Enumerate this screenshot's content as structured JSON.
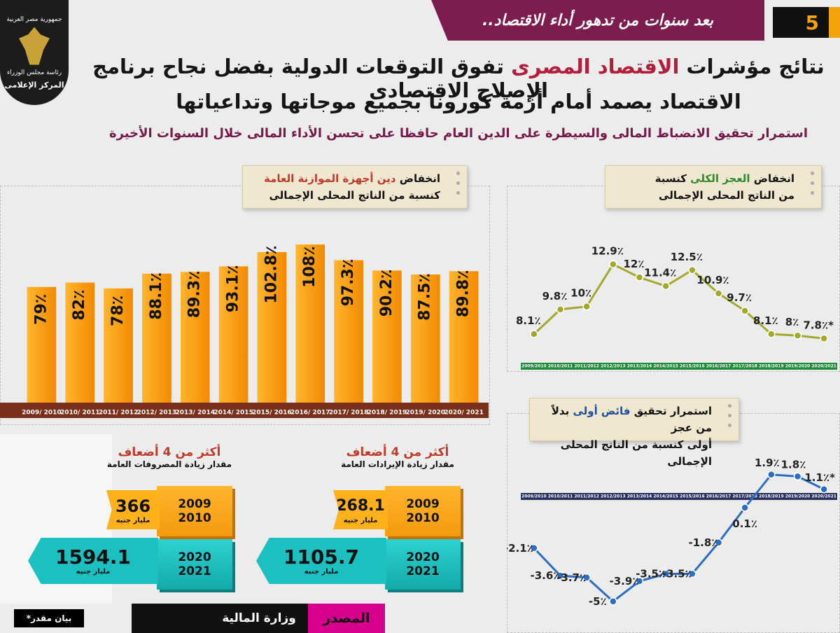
{
  "banner": {
    "title": "بعد سنوات من تدهور أداء الاقتصاد..",
    "page_number": "5"
  },
  "logo": {
    "line1": "جمهورية مصر العربية",
    "line2": "رئاسة مجلس الوزراء",
    "line3": "المركز الإعلامى"
  },
  "headline": {
    "line1_before": "نتائج مؤشرات ",
    "line1_highlight": "الاقتصاد المصرى",
    "line1_after": " تفوق التوقعات الدولية بفضل نجاح برنامج الإصلاح الاقتصادى",
    "line2": "الاقتصاد يصمد أمام أزمة كورونا بجميع موجاتها وتداعياتها",
    "subline": "استمرار تحقيق الانضباط المالى والسيطرة على الدين العام حافظا على تحسن الأداء المالى خلال السنوات الأخيرة"
  },
  "notes": {
    "debt": {
      "prefix": "انخفاض ",
      "highlight": "دين أجهزة الموازنة العامة",
      "line2": "كنسبة من الناتج المحلى الإجمالى"
    },
    "deficit": {
      "prefix": "انخفاض ",
      "highlight": "العجز الكلى",
      "suffix": " كنسبة",
      "line2": "من الناتج المحلى الإجمالى"
    },
    "primary": {
      "prefix": "استمرار تحقيق ",
      "highlight": "فائض أولى",
      "suffix": " بدلاً من عجز",
      "line2": "أولى كنسبة من الناتج المحلى الإجمالى"
    }
  },
  "spending": {
    "expenditure": {
      "ratio": "أكثر من 4 أضعاف",
      "label": "مقدار زيادة المصروفات العامة",
      "old_value": "366",
      "old_year1": "2009",
      "old_year2": "2010",
      "new_value": "1594.1",
      "new_year1": "2020",
      "new_year2": "2021",
      "unit": "مليار جنيه"
    },
    "revenue": {
      "ratio": "أكثر من 4 أضعاف",
      "label": "مقدار زيادة الإيرادات العامة",
      "old_value": "268.1",
      "old_year1": "2009",
      "old_year2": "2010",
      "new_value": "1105.7",
      "new_year1": "2020",
      "new_year2": "2021",
      "unit": "مليار جنيه"
    }
  },
  "footer": {
    "source_label": "المصدر",
    "source_value": "وزارة المالية",
    "estimate_note": "بيان مقدر*"
  },
  "colors": {
    "maroon": "#7d1d4f",
    "orange": "#f49a0d",
    "olive": "#a3a82b",
    "blue": "#2b6cc4",
    "teal": "#1dc0c0"
  },
  "chart_data": [
    {
      "type": "bar",
      "title": "انخفاض دين أجهزة الموازنة العامة كنسبة من الناتج المحلى الإجمالى",
      "categories": [
        "2009/ 2010",
        "2010/ 2011",
        "2011/ 2012",
        "2012/ 2013",
        "2013/ 2014",
        "2014/ 2015",
        "2015/ 2016",
        "2016/ 2017",
        "2017/ 2018",
        "2018/ 2019",
        "2019/ 2020",
        "2020/ 2021"
      ],
      "values": [
        79,
        82,
        78,
        88.1,
        89.3,
        93.1,
        102.8,
        108,
        97.3,
        90.2,
        87.5,
        89.8
      ],
      "labels": [
        "79٪",
        "82٪",
        "78٪",
        "88.1٪",
        "89.3٪",
        "93.1٪",
        "102.8٪",
        "108٪",
        "97.3٪",
        "90.2٪",
        "87.5٪",
        "89.8٪"
      ],
      "ylim": [
        0,
        110
      ]
    },
    {
      "type": "line",
      "title": "انخفاض العجز الكلى كنسبة من الناتج المحلى الإجمالى",
      "categories": [
        "2009/2010",
        "2010/2011",
        "2011/2012",
        "2012/2013",
        "2013/2014",
        "2014/2015",
        "2015/2016",
        "2016/2017",
        "2017/2018",
        "2018/2019",
        "2019/2020",
        "2020/2021"
      ],
      "values": [
        8.1,
        9.8,
        10,
        12.9,
        12,
        11.4,
        12.5,
        10.9,
        9.7,
        8.1,
        8,
        7.8
      ],
      "labels": [
        "8.1٪",
        "9.8٪",
        "10٪",
        "12.9٪",
        "12٪",
        "11.4٪",
        "12.5٪",
        "10.9٪",
        "9.7٪",
        "8.1٪",
        "8٪",
        "7.8٪*"
      ],
      "ylim": [
        7,
        13.5
      ]
    },
    {
      "type": "line",
      "title": "استمرار تحقيق فائض أولى بدلاً من عجز أولى كنسبة من الناتج المحلى الإجمالى",
      "categories": [
        "2009/2010",
        "2010/2011",
        "2011/2012",
        "2012/2013",
        "2013/2014",
        "2014/2015",
        "2015/2016",
        "2016/2017",
        "2017/2018",
        "2018/2019",
        "2019/2020",
        "2020/2021"
      ],
      "values": [
        -2.1,
        -3.6,
        -3.7,
        -5,
        -3.9,
        -3.5,
        -3.5,
        -1.8,
        0.1,
        1.9,
        1.8,
        1.1
      ],
      "labels": [
        "-2.1٪",
        "-3.6٪",
        "-3.7٪",
        "-5٪",
        "-3.9٪",
        "-3.5٪",
        "-3.5٪",
        "-1.8٪",
        "0.1٪",
        "1.9٪",
        "1.8٪",
        "1.1٪*"
      ],
      "ylim": [
        -5.5,
        2.5
      ]
    }
  ]
}
